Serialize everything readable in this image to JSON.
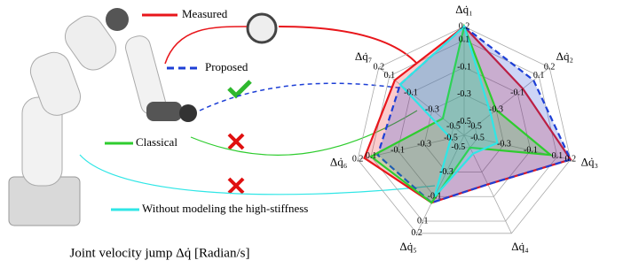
{
  "chart_data": {
    "type": "radar",
    "title": "Joint velocity jump Δq̇ [Radian/s]",
    "categories": [
      "Δq̇₁",
      "Δq̇₂",
      "Δq̇₃",
      "Δq̇₄",
      "Δq̇₅",
      "Δq̇₆",
      "Δq̇₇"
    ],
    "rlim": [
      -0.6,
      0.2
    ],
    "rticks": [
      -0.5,
      -0.3,
      -0.1,
      0.1,
      0.2
    ],
    "grid": true,
    "series": [
      {
        "name": "Measured",
        "color": "#e8161b",
        "dashed": false,
        "values": [
          0.2,
          -0.05,
          0.2,
          -0.2,
          -0.05,
          0.15,
          0.05
        ]
      },
      {
        "name": "Proposed",
        "color": "#1d3fd6",
        "dashed": true,
        "values": [
          0.2,
          0.05,
          0.2,
          -0.2,
          -0.05,
          0.05,
          0.0
        ]
      },
      {
        "name": "Classical",
        "color": "#2ecc2e",
        "dashed": false,
        "values": [
          0.2,
          -0.3,
          0.05,
          -0.5,
          -0.05,
          0.1,
          -0.4
        ]
      },
      {
        "name": "Without modeling the high-stiffness",
        "color": "#2fe6e6",
        "dashed": false,
        "values": [
          0.2,
          -0.35,
          -0.35,
          -0.45,
          -0.1,
          -0.5,
          0.0
        ]
      }
    ]
  }
}
